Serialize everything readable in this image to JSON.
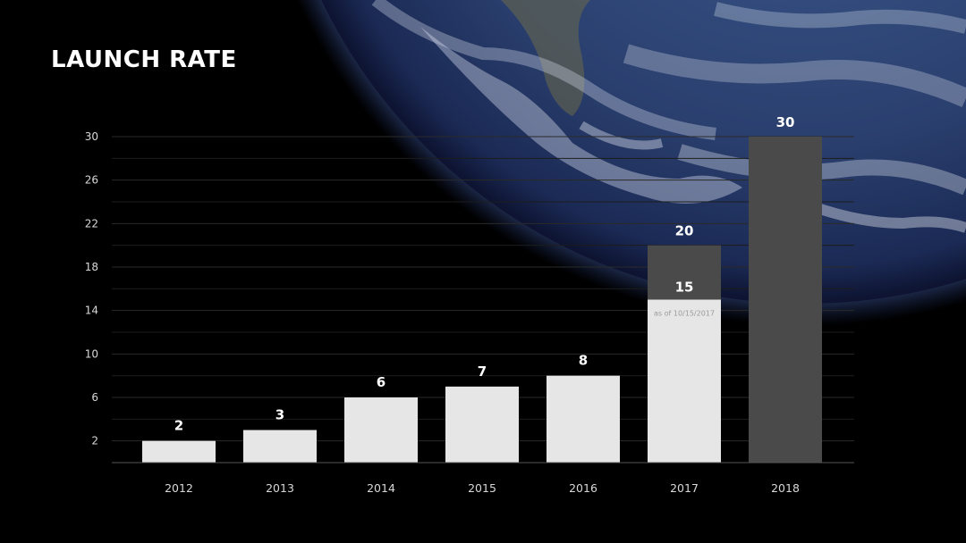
{
  "colors": {
    "background": "#000000",
    "bar": "#e6e6e6",
    "bar_projected": "#4a4a4a",
    "text": "#ffffff",
    "axis_text": "#d8d8d8",
    "grid": "#2a2a2a"
  },
  "chart_data": {
    "type": "bar",
    "title": "LAUNCH RATE",
    "xlabel": "",
    "ylabel": "",
    "ylim": [
      0,
      30
    ],
    "yticks": [
      2,
      6,
      10,
      14,
      18,
      22,
      26,
      30
    ],
    "grid": true,
    "categories": [
      "2012",
      "2013",
      "2014",
      "2015",
      "2016",
      "2017",
      "2018"
    ],
    "values": [
      2,
      3,
      6,
      7,
      8,
      15,
      null
    ],
    "value_labels": [
      "2",
      "3",
      "6",
      "7",
      "8",
      "15",
      ""
    ],
    "projected": [
      null,
      null,
      null,
      null,
      null,
      20,
      30
    ],
    "projected_labels": [
      "",
      "",
      "",
      "",
      "",
      "20",
      "30"
    ],
    "annotations": [
      {
        "category": "2017",
        "text": "as of 10/15/2017"
      }
    ]
  }
}
